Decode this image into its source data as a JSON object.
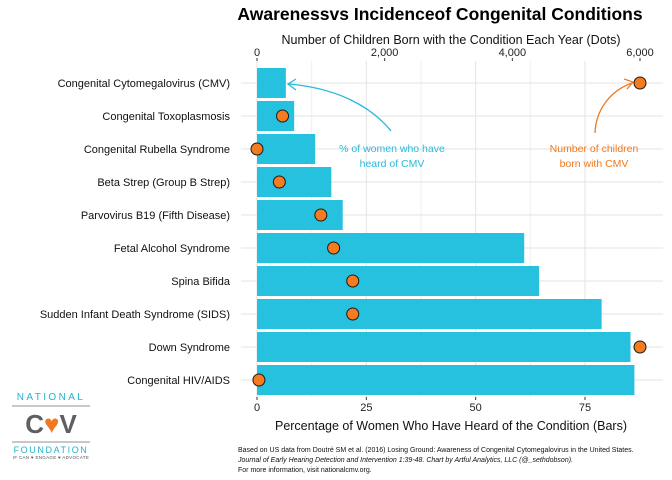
{
  "chart_data": {
    "type": "bar",
    "orientation": "horizontal",
    "title": "Awarenessvs Incidenceof Congenital Conditions",
    "xlabel": "Percentage of Women Who Have Heard of the Condition (Bars)",
    "x2label": "Number of Children Born with the Condition Each Year (Dots)",
    "xlim": [
      0,
      86
    ],
    "x2lim": [
      0,
      6000
    ],
    "xticks": [
      "0",
      "25",
      "50",
      "75"
    ],
    "xtick_values": [
      0,
      25,
      50,
      75
    ],
    "x2ticks": [
      "0",
      "2,000",
      "4,000",
      "6,000"
    ],
    "x2tick_values": [
      0,
      2000,
      4000,
      6000
    ],
    "grid": true,
    "colors": {
      "bars": "#26c1de",
      "dots": "#f47b20",
      "dot_edge": "#1a1a1a"
    },
    "categories": [
      "Congenital Cytomegalovirus (CMV)",
      "Congenital Toxoplasmosis",
      "Congenital Rubella Syndrome",
      "Beta Strep (Group B Strep)",
      "Parvovirus B19 (Fifth Disease)",
      "Fetal Alcohol Syndrome",
      "Spina Bifida",
      "Sudden Infant Death Syndrome (SIDS)",
      "Down Syndrome",
      "Congenital HIV/AIDS"
    ],
    "series": [
      {
        "values": [
          6.6,
          8.5,
          13.3,
          17.0,
          19.6,
          61.1,
          64.5,
          78.8,
          85.4,
          86.3
        ]
      },
      {
        "values": [
          6000,
          400,
          0,
          350,
          1000,
          1200,
          1500,
          1500,
          6000,
          30
        ]
      }
    ],
    "annotations": {
      "bars_note": [
        "% of women who have",
        "heard of CMV"
      ],
      "dots_note": [
        "Number of children",
        "born with CMV"
      ]
    }
  },
  "source": {
    "line1": "Based on US data from Doutré SM et al. (2016) Losing Ground: Awareness of Congenital Cytomegalovirus in the United States.",
    "line2": "Journal of Early Hearing Detection and Intervention 1:39-48. Chart by Artful Analytics, LLC (@_sethdobson).",
    "line3": "For more information, visit nationalcmv.org."
  },
  "logo": {
    "top": "NATIONAL",
    "mid_left": "C",
    "mid_heart": "♥",
    "mid_right": "V",
    "bottom": "FOUNDATION",
    "tagline": "IF CAN ♥ ENGAGE ♥ ADVOCATE"
  }
}
